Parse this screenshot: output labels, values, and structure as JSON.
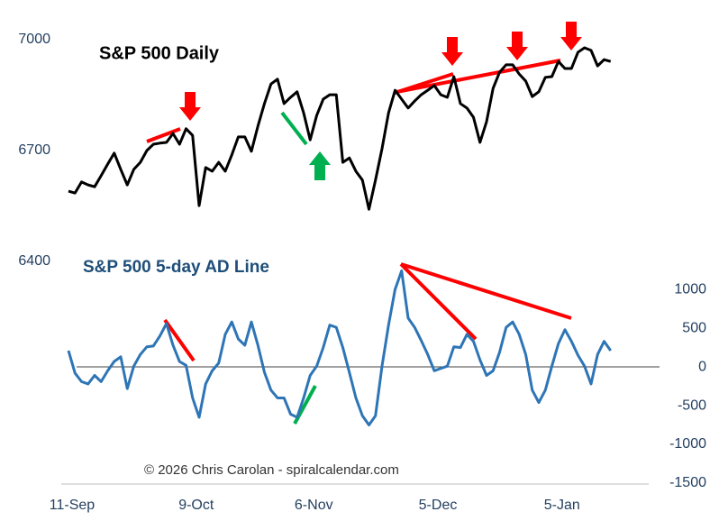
{
  "chart_data": {
    "type": "line",
    "title": "S&P 500 Daily",
    "subtitle": "S&P 500 5-day AD Line",
    "annotation": "© 2026 Chris Carolan - spiralcalendar.com",
    "categories": [
      "11-Sep",
      null,
      null,
      null,
      null,
      null,
      null,
      null,
      null,
      null,
      null,
      null,
      null,
      null,
      null,
      null,
      null,
      null,
      null,
      "9-Oct",
      null,
      null,
      null,
      null,
      null,
      null,
      null,
      null,
      null,
      null,
      null,
      null,
      null,
      null,
      null,
      null,
      null,
      "6-Nov",
      null,
      null,
      null,
      null,
      null,
      null,
      null,
      null,
      null,
      null,
      null,
      null,
      null,
      null,
      null,
      null,
      null,
      null,
      "5-Dec",
      null,
      null,
      null,
      null,
      null,
      null,
      null,
      null,
      null,
      null,
      null,
      null,
      null,
      null,
      null,
      null,
      null,
      null,
      "5-Jan",
      null,
      null,
      null,
      null,
      null,
      null,
      null,
      null
    ],
    "series": [
      {
        "name": "S&P 500 Daily",
        "color": "#000000",
        "axis": "y",
        "values": [
          6590,
          6585,
          6615,
          6607,
          6602,
          6632,
          6663,
          6693,
          6649,
          6607,
          6649,
          6668,
          6700,
          6717,
          6720,
          6722,
          6746,
          6717,
          6759,
          6741,
          6551,
          6654,
          6644,
          6668,
          6644,
          6688,
          6737,
          6737,
          6698,
          6766,
          6827,
          6880,
          6893,
          6827,
          6844,
          6859,
          6802,
          6729,
          6795,
          6839,
          6851,
          6851,
          6668,
          6680,
          6644,
          6620,
          6541,
          6620,
          6705,
          6802,
          6863,
          6839,
          6815,
          6834,
          6851,
          6863,
          6876,
          6851,
          6844,
          6900,
          6827,
          6815,
          6790,
          6722,
          6778,
          6868,
          6912,
          6932,
          6932,
          6907,
          6888,
          6846,
          6859,
          6898,
          6900,
          6941,
          6922,
          6922,
          6966,
          6978,
          6971,
          6929,
          6946,
          6941
        ]
      },
      {
        "name": "S&P 500 5-day AD Line",
        "color": "#2e75b6",
        "axis": "y2",
        "values": [
          210,
          -80,
          -190,
          -220,
          -110,
          -190,
          -50,
          70,
          130,
          -280,
          10,
          160,
          260,
          270,
          400,
          560,
          280,
          70,
          20,
          -400,
          -650,
          -220,
          -50,
          50,
          420,
          580,
          360,
          280,
          580,
          280,
          -70,
          -300,
          -400,
          -400,
          -610,
          -650,
          -400,
          -110,
          10,
          250,
          540,
          510,
          250,
          -70,
          -400,
          -630,
          -750,
          -630,
          10,
          540,
          1000,
          1240,
          630,
          510,
          340,
          160,
          -50,
          -20,
          10,
          260,
          250,
          420,
          330,
          90,
          -110,
          -50,
          190,
          510,
          580,
          420,
          160,
          -300,
          -460,
          -300,
          10,
          300,
          480,
          330,
          150,
          10,
          -220,
          160,
          330,
          210
        ]
      }
    ],
    "ylim": [
      5800,
      7100
    ],
    "yticks": [
      6400,
      6700,
      7000
    ],
    "y2lim": [
      -1500,
      4700
    ],
    "y2ticks": [
      -1500,
      -1000,
      -500,
      0,
      500,
      1000
    ],
    "grid": false
  }
}
